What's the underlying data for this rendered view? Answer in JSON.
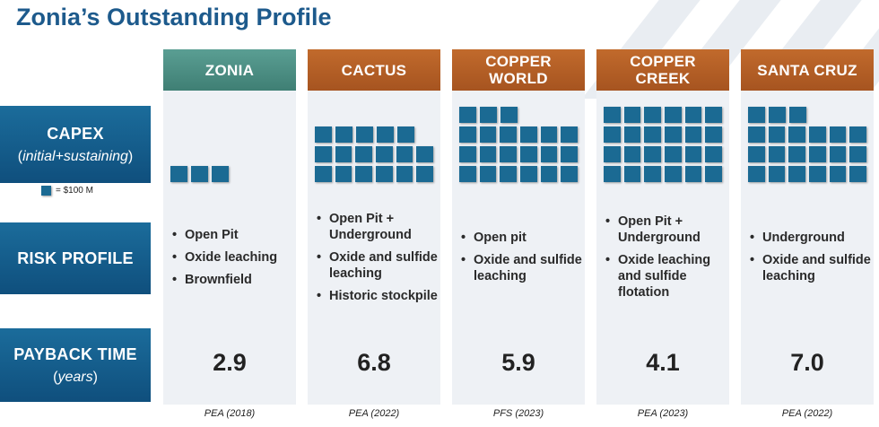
{
  "title": "Zonia’s Outstanding Profile",
  "rows": {
    "capex": {
      "label": "CAPEX",
      "sub": "initial+sustaining"
    },
    "risk": {
      "label": "RISK PROFILE"
    },
    "payback": {
      "label": "PAYBACK TIME",
      "sub": "years"
    }
  },
  "legend": {
    "label": "= $100 M"
  },
  "colors": {
    "zonia_header": "#4f9487",
    "other_header": "#b45f25",
    "row_label": "#166090",
    "capex_block": "#1b6a93"
  },
  "projects": [
    {
      "name_lines": [
        "ZONIA"
      ],
      "header_style": "zonia",
      "capex_blocks": 3,
      "risk": [
        "Open Pit",
        "Oxide leaching",
        "Brownfield"
      ],
      "payback": "2.9",
      "source": "PEA (2018)"
    },
    {
      "name_lines": [
        "CACTUS"
      ],
      "header_style": "other",
      "capex_blocks": 17,
      "risk": [
        "Open Pit + Underground",
        "Oxide and sulfide leaching",
        "Historic stockpile"
      ],
      "payback": "6.8",
      "source": "PEA (2022)"
    },
    {
      "name_lines": [
        "COPPER",
        "WORLD"
      ],
      "header_style": "other",
      "capex_blocks": 21,
      "risk": [
        "Open pit",
        "Oxide and sulfide leaching"
      ],
      "payback": "5.9",
      "source": "PFS (2023)"
    },
    {
      "name_lines": [
        "COPPER",
        "CREEK"
      ],
      "header_style": "other",
      "capex_blocks": 24,
      "risk": [
        "Open Pit + Underground",
        "Oxide leaching and sulfide flotation"
      ],
      "payback": "4.1",
      "source": "PEA (2023)"
    },
    {
      "name_lines": [
        "SANTA CRUZ"
      ],
      "header_style": "other",
      "capex_blocks": 21,
      "risk": [
        "Underground",
        "Oxide and sulfide leaching"
      ],
      "payback": "7.0",
      "source": "PEA (2022)"
    }
  ]
}
